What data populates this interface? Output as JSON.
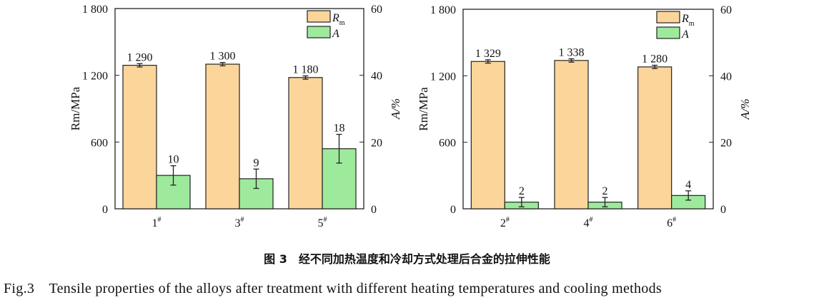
{
  "colors": {
    "Rm": "#fcd59a",
    "A": "#9eea9c"
  },
  "chart_data": [
    {
      "type": "bar",
      "categories": [
        "1#",
        "3#",
        "5#"
      ],
      "ylabel": "Rm/MPa",
      "y2label": "A/%",
      "ylim": [
        0,
        1800
      ],
      "y2lim": [
        0,
        60
      ],
      "yticks": [
        "0",
        "600",
        "1 200",
        "1 800"
      ],
      "y2ticks": [
        "0",
        "20",
        "40",
        "60"
      ],
      "legend": "top-right",
      "grid": false,
      "series": [
        {
          "name": "Rm",
          "axis": "left",
          "values": [
            1290,
            1300,
            1180
          ],
          "labels": [
            "1 290",
            "1 300",
            "1 180"
          ],
          "errors": [
            15,
            15,
            15
          ]
        },
        {
          "name": "A",
          "axis": "right",
          "values": [
            10,
            9,
            18
          ],
          "labels": [
            "10",
            "9",
            "18"
          ],
          "errors": [
            2.9,
            2.9,
            4.3
          ]
        }
      ]
    },
    {
      "type": "bar",
      "categories": [
        "2#",
        "4#",
        "6#"
      ],
      "ylabel": "Rm/MPa",
      "y2label": "A/%",
      "ylim": [
        0,
        1800
      ],
      "y2lim": [
        0,
        60
      ],
      "yticks": [
        "0",
        "600",
        "1 200",
        "1 800"
      ],
      "y2ticks": [
        "0",
        "20",
        "40",
        "60"
      ],
      "legend": "top-right",
      "grid": false,
      "series": [
        {
          "name": "Rm",
          "axis": "left",
          "values": [
            1329,
            1338,
            1280
          ],
          "labels": [
            "1 329",
            "1 338",
            "1 280"
          ],
          "errors": [
            15,
            15,
            15
          ]
        },
        {
          "name": "A",
          "axis": "right",
          "values": [
            2,
            2,
            4
          ],
          "labels": [
            "2",
            "2",
            "4"
          ],
          "errors": [
            1.4,
            1.4,
            1.4
          ]
        }
      ]
    }
  ],
  "caption": {
    "cn": "图 3　经不同加热温度和冷却方式处理后合金的拉伸性能",
    "en": "Fig.3　Tensile properties of the alloys after treatment with different heating temperatures and cooling methods"
  }
}
